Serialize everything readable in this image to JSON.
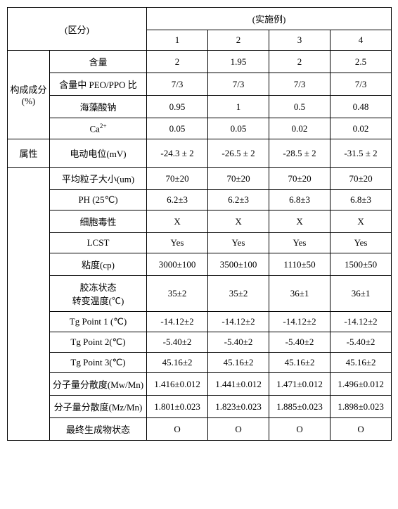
{
  "header": {
    "qufen": "(区分)",
    "shishili": "(实施例)",
    "cols": [
      "1",
      "2",
      "3",
      "4"
    ]
  },
  "groups": {
    "gouchengchengfen": "构成成分\n(%)",
    "shuxing": "属性",
    "blank": ""
  },
  "rows": {
    "hanliang": {
      "label": "含量",
      "v": [
        "2",
        "1.95",
        "2",
        "2.5"
      ]
    },
    "peoppo": {
      "label": "含量中 PEO/PPO 比",
      "v": [
        "7/3",
        "7/3",
        "7/3",
        "7/3"
      ]
    },
    "haizaosuanna": {
      "label": "海藻酸钠",
      "v": [
        "0.95",
        "1",
        "0.5",
        "0.48"
      ]
    },
    "ca": {
      "label_prefix": "Ca",
      "label_sup": "2+",
      "v": [
        "0.05",
        "0.05",
        "0.02",
        "0.02"
      ]
    },
    "diandongdianwei": {
      "label": "电动电位(mV)",
      "v": [
        "-24.3 ± 2",
        "-26.5 ± 2",
        "-28.5 ± 2",
        "-31.5 ± 2"
      ]
    },
    "pingjunlizidaxiao": {
      "label": "平均粒子大小(um)",
      "v": [
        "70±20",
        "70±20",
        "70±20",
        "70±20"
      ]
    },
    "ph": {
      "label": "PH (25℃)",
      "v": [
        "6.2±3",
        "6.2±3",
        "6.8±3",
        "6.8±3"
      ]
    },
    "xibaoduxing": {
      "label": "细胞毒性",
      "v": [
        "X",
        "X",
        "X",
        "X"
      ]
    },
    "lcst": {
      "label": "LCST",
      "v": [
        "Yes",
        "Yes",
        "Yes",
        "Yes"
      ]
    },
    "niandu": {
      "label": "粘度(cp)",
      "v": [
        "3000±100",
        "3500±100",
        "1110±50",
        "1500±50"
      ]
    },
    "jiaodong": {
      "label_l1": "胶冻状态",
      "label_l2": "转变温度(℃)",
      "v": [
        "35±2",
        "35±2",
        "36±1",
        "36±1"
      ]
    },
    "tg1": {
      "label": "Tg Point 1 (℃)",
      "v": [
        "-14.12±2",
        "-14.12±2",
        "-14.12±2",
        "-14.12±2"
      ]
    },
    "tg2": {
      "label": "Tg Point 2(℃)",
      "v": [
        "-5.40±2",
        "-5.40±2",
        "-5.40±2",
        "-5.40±2"
      ]
    },
    "tg3": {
      "label": "Tg Point 3(℃)",
      "v": [
        "45.16±2",
        "45.16±2",
        "45.16±2",
        "45.16±2"
      ]
    },
    "mwmn": {
      "label": "分子量分散度(Mw/Mn)",
      "v": [
        "1.416±0.012",
        "1.441±0.012",
        "1.471±0.012",
        "1.496±0.012"
      ]
    },
    "mzmn": {
      "label": "分子量分散度(Mz/Mn)",
      "v": [
        "1.801±0.023",
        "1.823±0.023",
        "1.885±0.023",
        "1.898±0.023"
      ]
    },
    "zuizhong": {
      "label": "最终生成物状态",
      "v": [
        "O",
        "O",
        "O",
        "O"
      ]
    }
  }
}
